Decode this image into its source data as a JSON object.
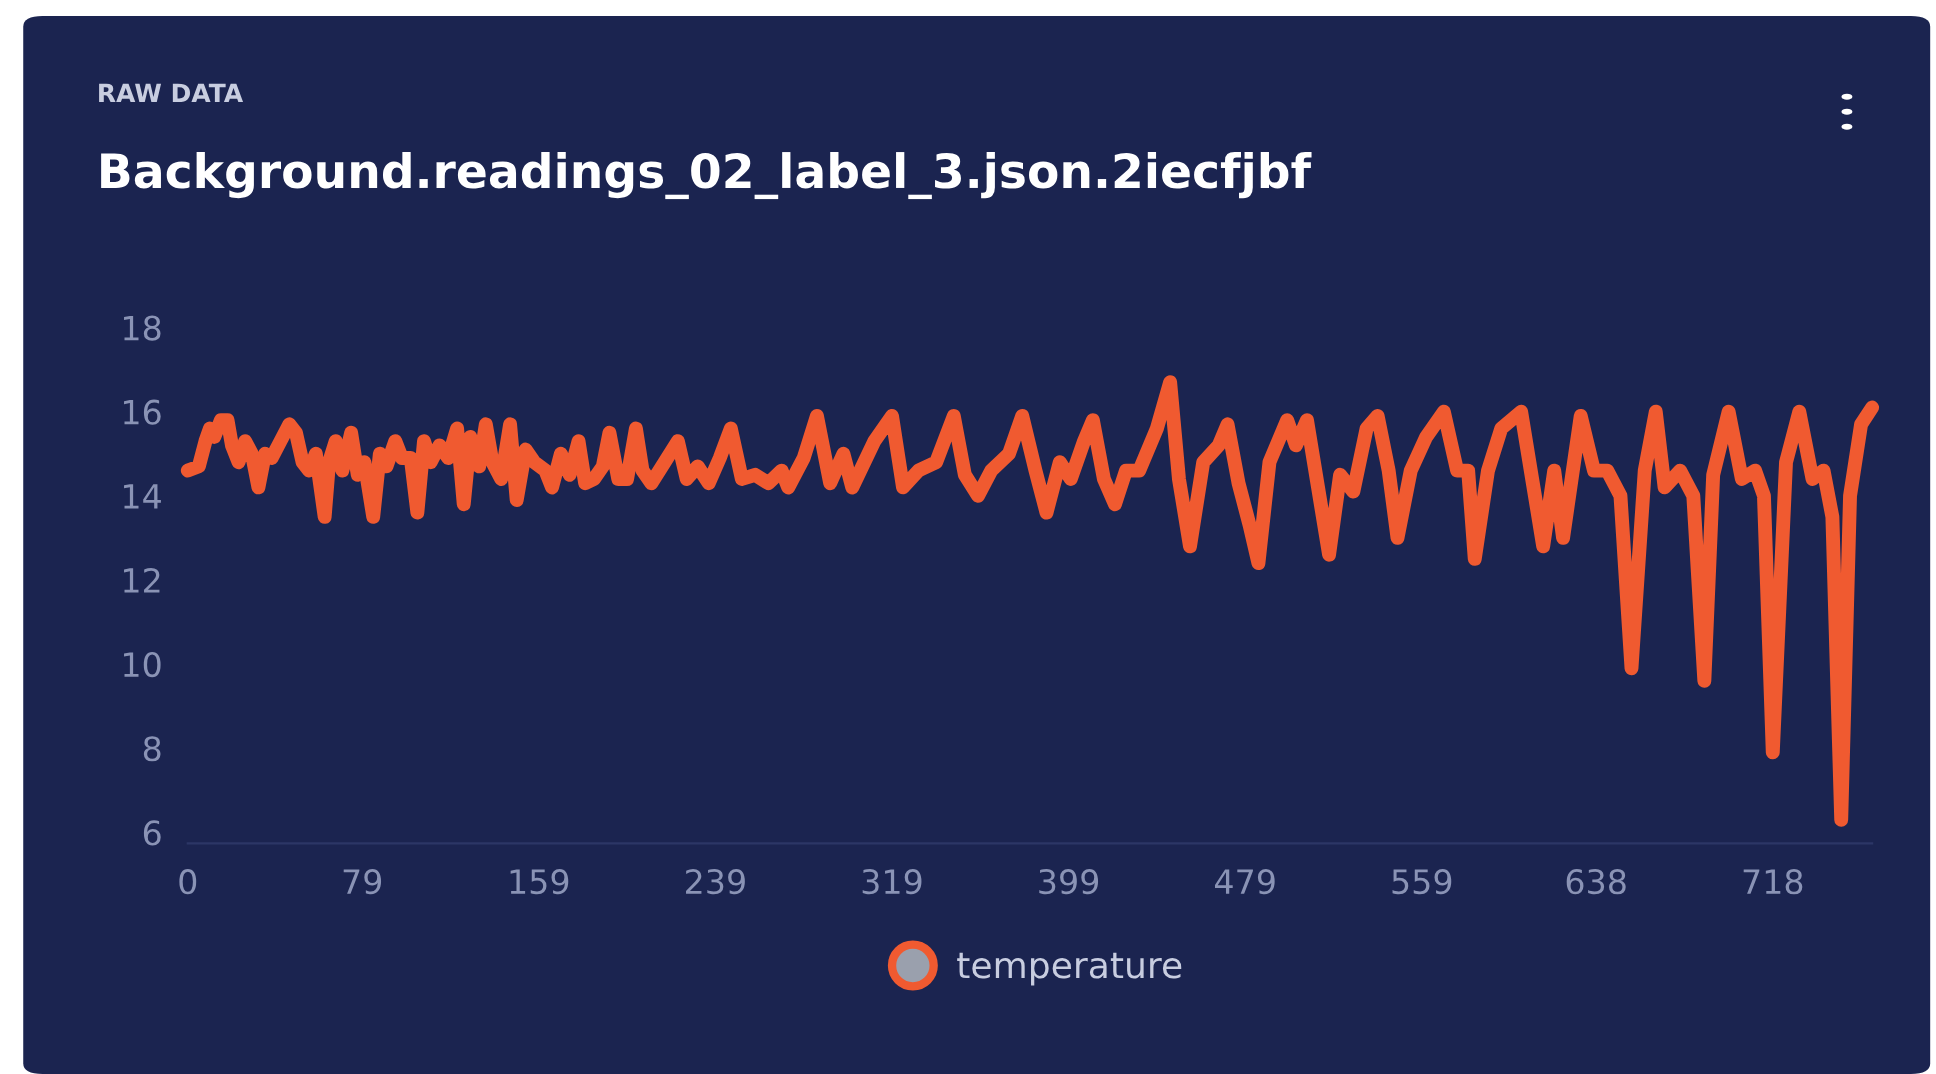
{
  "chart_data": {
    "type": "line",
    "subtitle": "RAW DATA",
    "title": "Background.readings_02_label_3.json.2iecfjbf",
    "xlim": [
      0,
      763
    ],
    "xticks": [
      0,
      79,
      159,
      239,
      319,
      399,
      479,
      559,
      638,
      718
    ],
    "ylim": [
      6,
      18
    ],
    "yticks": [
      6,
      8,
      10,
      12,
      14,
      16,
      18
    ],
    "grid": false,
    "legend": "bottom",
    "marker": "none",
    "line_style": "solid",
    "series": [
      {
        "name": "temperature",
        "color": "#f05a30",
        "x": [
          0,
          5,
          8,
          10,
          12,
          15,
          18,
          20,
          23,
          26,
          29,
          32,
          35,
          38,
          42,
          46,
          49,
          52,
          55,
          58,
          62,
          64,
          67,
          70,
          74,
          77,
          80,
          84,
          87,
          90,
          94,
          97,
          101,
          104,
          107,
          110,
          114,
          118,
          122,
          125,
          128,
          132,
          135,
          138,
          142,
          146,
          149,
          153,
          157,
          162,
          165,
          169,
          173,
          177,
          180,
          184,
          188,
          191,
          195,
          199,
          203,
          206,
          210,
          216,
          222,
          226,
          231,
          236,
          241,
          246,
          251,
          257,
          263,
          269,
          272,
          279,
          285,
          291,
          297,
          301,
          311,
          319,
          324,
          331,
          339,
          347,
          352,
          358,
          364,
          372,
          378,
          384,
          389,
          395,
          400,
          406,
          410,
          415,
          420,
          425,
          431,
          439,
          445,
          449,
          454,
          460,
          467,
          471,
          476,
          481,
          485,
          490,
          498,
          502,
          507,
          512,
          517,
          522,
          528,
          534,
          539,
          544,
          548,
          554,
          561,
          569,
          575,
          580,
          583,
          589,
          595,
          604,
          609,
          614,
          619,
          623,
          631,
          637,
          643,
          649,
          654,
          660,
          665,
          669,
          676,
          682,
          687,
          691,
          698,
          704,
          710,
          714,
          718,
          724,
          730,
          736,
          741,
          745,
          749,
          753,
          758,
          763
        ],
        "values": [
          14.6,
          14.7,
          15.3,
          15.6,
          15.4,
          15.8,
          15.8,
          15.2,
          14.8,
          15.3,
          15.0,
          14.2,
          15.0,
          14.9,
          15.3,
          15.7,
          15.5,
          14.8,
          14.6,
          15.0,
          13.5,
          14.8,
          15.3,
          14.6,
          15.5,
          14.5,
          14.8,
          13.5,
          15.0,
          14.7,
          15.3,
          14.9,
          14.9,
          13.6,
          15.3,
          14.8,
          15.2,
          14.9,
          15.6,
          13.8,
          15.4,
          14.7,
          15.7,
          14.8,
          14.4,
          15.7,
          13.9,
          15.1,
          14.8,
          14.6,
          14.2,
          15.0,
          14.5,
          15.3,
          14.3,
          14.4,
          14.7,
          15.5,
          14.4,
          14.4,
          15.6,
          14.6,
          14.3,
          14.8,
          15.3,
          14.4,
          14.7,
          14.3,
          14.9,
          15.6,
          14.4,
          14.5,
          14.3,
          14.6,
          14.2,
          14.9,
          15.9,
          14.3,
          15.0,
          14.2,
          15.3,
          15.9,
          14.2,
          14.6,
          14.8,
          15.9,
          14.5,
          14.0,
          14.6,
          15.0,
          15.9,
          14.6,
          13.6,
          14.8,
          14.4,
          15.3,
          15.8,
          14.4,
          13.8,
          14.6,
          14.6,
          15.6,
          16.7,
          14.4,
          12.8,
          14.8,
          15.2,
          15.7,
          14.3,
          13.3,
          12.4,
          14.8,
          15.8,
          15.2,
          15.8,
          14.2,
          12.6,
          14.5,
          14.1,
          15.6,
          15.9,
          14.6,
          13.0,
          14.6,
          15.4,
          16.0,
          14.6,
          14.6,
          12.5,
          14.6,
          15.6,
          16.0,
          14.4,
          12.8,
          14.6,
          13.0,
          15.9,
          14.6,
          14.6,
          14.0,
          9.9,
          14.6,
          16.0,
          14.2,
          14.6,
          14.0,
          9.6,
          14.5,
          16.0,
          14.4,
          14.6,
          14.0,
          7.9,
          14.8,
          16.0,
          14.4,
          14.6,
          13.5,
          6.3,
          14.0,
          15.7,
          16.1
        ]
      }
    ]
  }
}
